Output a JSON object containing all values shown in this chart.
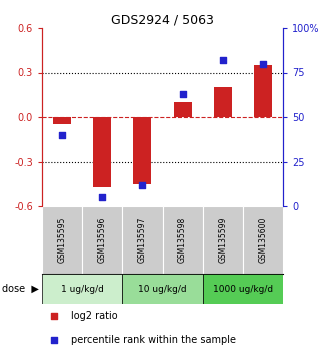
{
  "title": "GDS2924 / 5063",
  "samples": [
    "GSM135595",
    "GSM135596",
    "GSM135597",
    "GSM135598",
    "GSM135599",
    "GSM135600"
  ],
  "log2_ratio": [
    -0.05,
    -0.47,
    -0.45,
    0.1,
    0.2,
    0.35
  ],
  "percentile_rank": [
    40,
    5,
    12,
    63,
    82,
    80
  ],
  "ylim_left": [
    -0.6,
    0.6
  ],
  "ylim_right": [
    0,
    100
  ],
  "yticks_left": [
    -0.6,
    -0.3,
    0.0,
    0.3,
    0.6
  ],
  "yticks_right": [
    0,
    25,
    50,
    75,
    100
  ],
  "ytick_labels_right": [
    "0",
    "25",
    "50",
    "75",
    "100%"
  ],
  "hlines_dotted": [
    -0.3,
    0.3
  ],
  "hline_dashed_red": 0.0,
  "bar_color": "#cc2222",
  "dot_color": "#2222cc",
  "dose_groups": [
    {
      "label": "1 ug/kg/d",
      "samples": [
        0,
        1
      ],
      "color": "#cceecc"
    },
    {
      "label": "10 ug/kg/d",
      "samples": [
        2,
        3
      ],
      "color": "#99dd99"
    },
    {
      "label": "1000 ug/kg/d",
      "samples": [
        4,
        5
      ],
      "color": "#55cc55"
    }
  ],
  "dose_label": "dose",
  "legend_log2": "log2 ratio",
  "legend_percentile": "percentile rank within the sample",
  "sample_box_color": "#cccccc",
  "bar_width": 0.45,
  "dot_size": 18
}
